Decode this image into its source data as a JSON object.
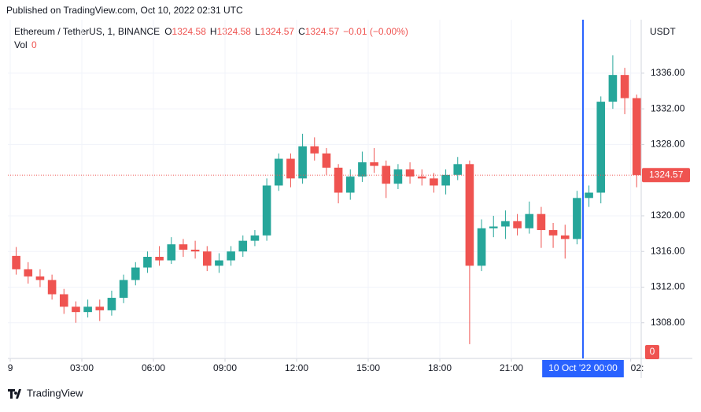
{
  "header": {
    "published": "Published on TradingView.com, Oct 10, 2022 02:31 UTC"
  },
  "chart_data": {
    "type": "candlestick",
    "symbol": "Ethereum / TetherUS, 1, BINANCE",
    "legend_values": [
      {
        "label": "O",
        "value": "1324.58"
      },
      {
        "label": "H",
        "value": "1324.58"
      },
      {
        "label": "L",
        "value": "1324.57"
      },
      {
        "label": "C",
        "value": "1324.57"
      },
      {
        "label": "",
        "value": "−0.01 (−0.00%)"
      }
    ],
    "volume_label": "Vol",
    "volume_value": "0",
    "currency": "USDT",
    "up_color": "#26a69a",
    "down_color": "#ef5350",
    "x": [
      0,
      0.5,
      1,
      1.5,
      2,
      2.5,
      3,
      3.5,
      4,
      4.5,
      5,
      5.5,
      6,
      6.5,
      7,
      7.5,
      8,
      8.5,
      9,
      9.5,
      10,
      10.5,
      11,
      11.5,
      12,
      12.5,
      13,
      13.5,
      14,
      14.5,
      15,
      15.5,
      16,
      16.5,
      17,
      17.5,
      18,
      18.5,
      19,
      19.5,
      20,
      20.5,
      21,
      21.5,
      22,
      22.5,
      23,
      23.5,
      24,
      24.5,
      25,
      25.5,
      26
    ],
    "open": [
      1315.5,
      1314.0,
      1313.2,
      1312.8,
      1311.2,
      1309.8,
      1309.2,
      1309.8,
      1309.4,
      1310.8,
      1312.8,
      1314.2,
      1315.4,
      1315.0,
      1316.8,
      1316.2,
      1316.0,
      1314.4,
      1315.0,
      1316.0,
      1317.2,
      1317.8,
      1323.4,
      1326.4,
      1324.2,
      1327.8,
      1327.0,
      1325.4,
      1322.6,
      1324.4,
      1326.0,
      1325.6,
      1323.6,
      1325.2,
      1324.4,
      1324.2,
      1323.4,
      1324.6,
      1325.8,
      1314.4,
      1318.6,
      1318.8,
      1319.4,
      1318.6,
      1320.2,
      1318.4,
      1317.8,
      1317.4,
      1322.0,
      1322.6,
      1332.8,
      1335.8,
      1333.2
    ],
    "high": [
      1316.5,
      1314.8,
      1314.0,
      1313.4,
      1311.8,
      1310.4,
      1310.6,
      1310.6,
      1311.6,
      1313.4,
      1314.8,
      1316.0,
      1316.6,
      1317.6,
      1317.4,
      1317.2,
      1316.6,
      1315.8,
      1316.6,
      1317.8,
      1318.4,
      1324.2,
      1327.0,
      1327.0,
      1329.2,
      1328.8,
      1327.6,
      1325.8,
      1325.2,
      1327.2,
      1327.6,
      1326.2,
      1325.8,
      1326.0,
      1325.2,
      1324.8,
      1325.2,
      1326.6,
      1326.2,
      1319.6,
      1320.0,
      1320.6,
      1320.2,
      1321.6,
      1321.0,
      1319.2,
      1319.0,
      1322.8,
      1323.4,
      1333.4,
      1338.0,
      1336.6,
      1333.6
    ],
    "low": [
      1313.4,
      1312.4,
      1312.0,
      1310.6,
      1309.0,
      1308.0,
      1308.6,
      1308.2,
      1308.8,
      1310.2,
      1312.2,
      1313.6,
      1314.4,
      1314.6,
      1315.4,
      1315.2,
      1313.8,
      1313.6,
      1314.4,
      1315.4,
      1316.6,
      1317.2,
      1322.8,
      1323.2,
      1323.6,
      1326.2,
      1324.6,
      1321.4,
      1321.8,
      1323.8,
      1324.8,
      1322.0,
      1323.0,
      1323.6,
      1323.4,
      1322.6,
      1322.4,
      1324.0,
      1305.6,
      1313.8,
      1317.6,
      1317.4,
      1317.8,
      1318.0,
      1316.4,
      1316.4,
      1315.2,
      1316.8,
      1321.0,
      1321.4,
      1332.0,
      1331.4,
      1323.2
    ],
    "close": [
      1314.0,
      1313.2,
      1312.8,
      1311.2,
      1309.8,
      1309.2,
      1309.8,
      1309.4,
      1310.8,
      1312.8,
      1314.2,
      1315.4,
      1315.0,
      1316.8,
      1316.2,
      1316.0,
      1314.4,
      1315.0,
      1316.0,
      1317.2,
      1317.8,
      1323.4,
      1326.4,
      1324.2,
      1327.8,
      1327.0,
      1325.4,
      1322.6,
      1324.4,
      1326.0,
      1325.6,
      1323.6,
      1325.2,
      1324.4,
      1324.2,
      1323.4,
      1324.6,
      1325.8,
      1314.4,
      1318.6,
      1318.8,
      1319.4,
      1318.6,
      1320.2,
      1318.4,
      1317.8,
      1317.4,
      1322.0,
      1322.6,
      1332.8,
      1335.8,
      1333.2,
      1324.57
    ],
    "xlim": [
      -0.1,
      26.44
    ],
    "ylim": [
      1304,
      1342
    ],
    "xticks": [
      {
        "value": 0,
        "label": "9"
      },
      {
        "value": 3,
        "label": "03:00"
      },
      {
        "value": 6,
        "label": "06:00"
      },
      {
        "value": 9,
        "label": "09:00"
      },
      {
        "value": 12,
        "label": "12:00"
      },
      {
        "value": 15,
        "label": "15:00"
      },
      {
        "value": 18,
        "label": "18:00"
      },
      {
        "value": 21,
        "label": "21:00"
      },
      {
        "value": 26,
        "label": "02:"
      }
    ],
    "yticks": [
      {
        "value": 1308,
        "label": "1308.00"
      },
      {
        "value": 1312,
        "label": "1312.00"
      },
      {
        "value": 1316,
        "label": "1316.00"
      },
      {
        "value": 1320,
        "label": "1320.00"
      },
      {
        "value": 1328,
        "label": "1328.00"
      },
      {
        "value": 1332,
        "label": "1332.00"
      },
      {
        "value": 1336,
        "label": "1336.00"
      }
    ],
    "crosshair": {
      "x": 24,
      "label": "10 Oct '22  00:00"
    },
    "grid": true
  },
  "footer": {
    "brand": "TradingView"
  }
}
